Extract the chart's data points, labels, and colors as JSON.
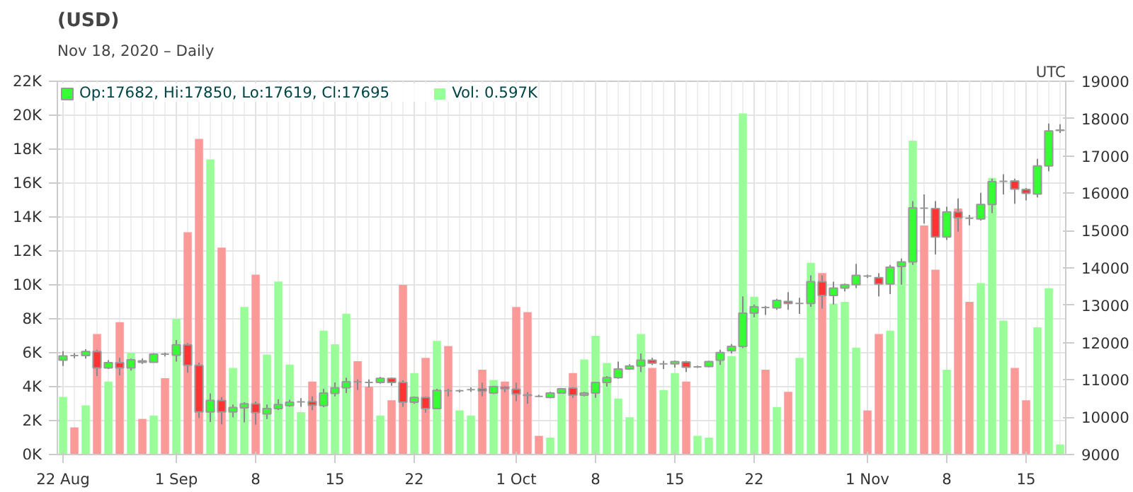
{
  "chart_data": {
    "type": "candlestick",
    "title": "(USD)",
    "subtitle": "Nov 18, 2020 – Daily",
    "annotations": [
      "UTC"
    ],
    "x": [
      "2020-08-22",
      "2020-08-23",
      "2020-08-24",
      "2020-08-25",
      "2020-08-26",
      "2020-08-27",
      "2020-08-28",
      "2020-08-29",
      "2020-08-30",
      "2020-08-31",
      "2020-09-01",
      "2020-09-02",
      "2020-09-03",
      "2020-09-04",
      "2020-09-05",
      "2020-09-06",
      "2020-09-07",
      "2020-09-08",
      "2020-09-09",
      "2020-09-10",
      "2020-09-11",
      "2020-09-12",
      "2020-09-13",
      "2020-09-14",
      "2020-09-15",
      "2020-09-16",
      "2020-09-17",
      "2020-09-18",
      "2020-09-19",
      "2020-09-20",
      "2020-09-21",
      "2020-09-22",
      "2020-09-23",
      "2020-09-24",
      "2020-09-25",
      "2020-09-26",
      "2020-09-27",
      "2020-09-28",
      "2020-09-29",
      "2020-09-30",
      "2020-10-01",
      "2020-10-02",
      "2020-10-03",
      "2020-10-04",
      "2020-10-05",
      "2020-10-06",
      "2020-10-07",
      "2020-10-08",
      "2020-10-09",
      "2020-10-10",
      "2020-10-11",
      "2020-10-12",
      "2020-10-13",
      "2020-10-14",
      "2020-10-15",
      "2020-10-16",
      "2020-10-17",
      "2020-10-18",
      "2020-10-19",
      "2020-10-20",
      "2020-10-21",
      "2020-10-22",
      "2020-10-23",
      "2020-10-24",
      "2020-10-25",
      "2020-10-26",
      "2020-10-27",
      "2020-10-28",
      "2020-10-29",
      "2020-10-30",
      "2020-10-31",
      "2020-11-01",
      "2020-11-02",
      "2020-11-03",
      "2020-11-04",
      "2020-11-05",
      "2020-11-06",
      "2020-11-07",
      "2020-11-08",
      "2020-11-09",
      "2020-11-10",
      "2020-11-11",
      "2020-11-12",
      "2020-11-13",
      "2020-11-14",
      "2020-11-15",
      "2020-11-16",
      "2020-11-17",
      "2020-11-18"
    ],
    "series": [
      {
        "type": "bar",
        "name": "Vol: 0.597K",
        "values": [
          3.4,
          1.6,
          2.9,
          7.1,
          4.3,
          7.8,
          6.0,
          2.1,
          2.3,
          4.5,
          8.0,
          13.1,
          18.6,
          17.4,
          12.2,
          5.1,
          8.7,
          10.6,
          5.9,
          10.2,
          5.3,
          2.5,
          4.3,
          7.3,
          6.5,
          8.3,
          5.5,
          4.0,
          2.3,
          3.2,
          10.0,
          4.8,
          5.7,
          6.7,
          6.4,
          2.6,
          2.3,
          5.0,
          4.4,
          4.3,
          8.7,
          8.4,
          1.1,
          1.0,
          3.6,
          4.8,
          5.6,
          7.0,
          5.4,
          3.3,
          2.2,
          7.1,
          5.1,
          3.8,
          4.8,
          4.3,
          1.1,
          1.0,
          5.6,
          5.8,
          20.1,
          9.3,
          5.0,
          2.8,
          3.7,
          5.7,
          11.3,
          10.7,
          8.9,
          9.0,
          6.3,
          2.6,
          7.1,
          7.3,
          11.1,
          18.5,
          13.5,
          10.9,
          5.0,
          14.5,
          9.0,
          10.1,
          16.3,
          7.9,
          5.1,
          3.2,
          7.5,
          9.8,
          0.597
        ],
        "colors": [
          "#99ff99",
          "#ff9999",
          "#99ff99",
          "#ff9999",
          "#99ff99",
          "#ff9999",
          "#99ff99",
          "#ff9999",
          "#99ff99",
          "#ff9999",
          "#99ff99",
          "#ff9999",
          "#ff9999",
          "#99ff99",
          "#ff9999",
          "#99ff99",
          "#99ff99",
          "#ff9999",
          "#99ff99",
          "#99ff99",
          "#99ff99",
          "#99ff99",
          "#ff9999",
          "#99ff99",
          "#99ff99",
          "#99ff99",
          "#ff9999",
          "#ff9999",
          "#99ff99",
          "#ff9999",
          "#ff9999",
          "#99ff99",
          "#ff9999",
          "#99ff99",
          "#ff9999",
          "#99ff99",
          "#99ff99",
          "#ff9999",
          "#99ff99",
          "#ff9999",
          "#ff9999",
          "#ff9999",
          "#ff9999",
          "#99ff99",
          "#99ff99",
          "#ff9999",
          "#99ff99",
          "#99ff99",
          "#99ff99",
          "#99ff99",
          "#99ff99",
          "#99ff99",
          "#ff9999",
          "#99ff99",
          "#99ff99",
          "#ff9999",
          "#99ff99",
          "#99ff99",
          "#99ff99",
          "#99ff99",
          "#99ff99",
          "#99ff99",
          "#ff9999",
          "#99ff99",
          "#ff9999",
          "#99ff99",
          "#99ff99",
          "#ff9999",
          "#99ff99",
          "#99ff99",
          "#99ff99",
          "#ff9999",
          "#ff9999",
          "#99ff99",
          "#99ff99",
          "#99ff99",
          "#ff9999",
          "#ff9999",
          "#99ff99",
          "#ff9999",
          "#ff9999",
          "#99ff99",
          "#99ff99",
          "#99ff99",
          "#ff9999",
          "#ff9999",
          "#99ff99",
          "#99ff99",
          "#99ff99"
        ]
      },
      {
        "axis": "y2",
        "name": "Op:17682, Hi:17850, Lo:17619, Cl:17695",
        "ohlc": [
          [
            11530,
            11770,
            11370,
            11640
          ],
          [
            11650,
            11720,
            11580,
            11650
          ],
          [
            11650,
            11820,
            11570,
            11760
          ],
          [
            11760,
            11810,
            11100,
            11320
          ],
          [
            11320,
            11530,
            11290,
            11460
          ],
          [
            11460,
            11590,
            11120,
            11320
          ],
          [
            11320,
            11570,
            11250,
            11540
          ],
          [
            11510,
            11570,
            11430,
            11470
          ],
          [
            11470,
            11720,
            11460,
            11690
          ],
          [
            11690,
            11730,
            11630,
            11690
          ],
          [
            11660,
            12070,
            11490,
            11940
          ],
          [
            11940,
            11990,
            11190,
            11390
          ],
          [
            11390,
            11460,
            9980,
            10140
          ],
          [
            10140,
            10640,
            9870,
            10450
          ],
          [
            10450,
            10540,
            9810,
            10140
          ],
          [
            10140,
            10340,
            10000,
            10260
          ],
          [
            10250,
            10400,
            9860,
            10360
          ],
          [
            10360,
            10420,
            9800,
            10120
          ],
          [
            10090,
            10340,
            9950,
            10230
          ],
          [
            10230,
            10480,
            10190,
            10340
          ],
          [
            10310,
            10470,
            10280,
            10400
          ],
          [
            10410,
            10510,
            10280,
            10410
          ],
          [
            10420,
            10560,
            10190,
            10320
          ],
          [
            10310,
            10760,
            10270,
            10650
          ],
          [
            10640,
            10930,
            10560,
            10790
          ],
          [
            10790,
            11060,
            10650,
            10950
          ],
          [
            10950,
            11010,
            10730,
            10950
          ],
          [
            10930,
            11010,
            10800,
            10930
          ],
          [
            10930,
            11080,
            10900,
            11040
          ],
          [
            11040,
            11060,
            10840,
            10930
          ],
          [
            10930,
            10990,
            10280,
            10400
          ],
          [
            10400,
            10560,
            10360,
            10530
          ],
          [
            10530,
            10560,
            10120,
            10230
          ],
          [
            10230,
            10760,
            10210,
            10720
          ],
          [
            10710,
            10760,
            10560,
            10710
          ],
          [
            10710,
            10740,
            10660,
            10710
          ],
          [
            10740,
            10800,
            10680,
            10740
          ],
          [
            10760,
            10920,
            10560,
            10700
          ],
          [
            10650,
            10840,
            10620,
            10820
          ],
          [
            10810,
            10840,
            10670,
            10760
          ],
          [
            10750,
            10920,
            10430,
            10620
          ],
          [
            10600,
            10670,
            10360,
            10580
          ],
          [
            10560,
            10600,
            10540,
            10560
          ],
          [
            10530,
            10680,
            10510,
            10650
          ],
          [
            10650,
            10780,
            10630,
            10760
          ],
          [
            10780,
            10810,
            10520,
            10590
          ],
          [
            10590,
            10680,
            10560,
            10650
          ],
          [
            10650,
            10950,
            10520,
            10930
          ],
          [
            10930,
            11100,
            10820,
            11060
          ],
          [
            11060,
            11490,
            11030,
            11290
          ],
          [
            11290,
            11420,
            11270,
            11370
          ],
          [
            11370,
            11710,
            11210,
            11530
          ],
          [
            11530,
            11590,
            11400,
            11450
          ],
          [
            11430,
            11510,
            11290,
            11430
          ],
          [
            11430,
            11520,
            11330,
            11490
          ],
          [
            11480,
            11510,
            11210,
            11340
          ],
          [
            11350,
            11380,
            11320,
            11350
          ],
          [
            11360,
            11510,
            11340,
            11490
          ],
          [
            11530,
            11810,
            11400,
            11730
          ],
          [
            11780,
            11960,
            11710,
            11900
          ],
          [
            11900,
            13240,
            11850,
            12790
          ],
          [
            12790,
            13020,
            12680,
            12960
          ],
          [
            12940,
            12980,
            12740,
            12940
          ],
          [
            12930,
            13170,
            12880,
            13130
          ],
          [
            13100,
            13350,
            12880,
            13050
          ],
          [
            13050,
            13200,
            12770,
            13050
          ],
          [
            13050,
            13800,
            12960,
            13630
          ],
          [
            13630,
            13800,
            12910,
            13260
          ],
          [
            13260,
            13630,
            13020,
            13460
          ],
          [
            13460,
            13580,
            13370,
            13550
          ],
          [
            13550,
            14110,
            13460,
            13800
          ],
          [
            13780,
            13820,
            13730,
            13780
          ],
          [
            13740,
            13860,
            13240,
            13570
          ],
          [
            13570,
            14080,
            13300,
            14020
          ],
          [
            14040,
            14250,
            13550,
            14160
          ],
          [
            14160,
            15790,
            14080,
            15610
          ],
          [
            15600,
            15970,
            15190,
            15600
          ],
          [
            15590,
            15790,
            14360,
            14830
          ],
          [
            14830,
            15640,
            14750,
            15500
          ],
          [
            15500,
            15860,
            14970,
            15340
          ],
          [
            15330,
            15420,
            15140,
            15330
          ],
          [
            15310,
            16010,
            15270,
            15700
          ],
          [
            15700,
            16390,
            15470,
            16310
          ],
          [
            16320,
            16510,
            15970,
            16320
          ],
          [
            16330,
            16390,
            15720,
            16110
          ],
          [
            16100,
            16140,
            15810,
            16000
          ],
          [
            15980,
            16920,
            15890,
            16730
          ],
          [
            16730,
            17870,
            16590,
            17670
          ],
          [
            17682,
            17850,
            17619,
            17695
          ]
        ],
        "colors": [
          "#33ff33",
          "#999999",
          "#33ff33",
          "#ff3333",
          "#33ff33",
          "#ff3333",
          "#33ff33",
          "#ff3333",
          "#33ff33",
          "#999999",
          "#33ff33",
          "#ff3333",
          "#ff3333",
          "#33ff33",
          "#ff3333",
          "#33ff33",
          "#33ff33",
          "#ff3333",
          "#33ff33",
          "#33ff33",
          "#33ff33",
          "#999999",
          "#ff3333",
          "#33ff33",
          "#33ff33",
          "#33ff33",
          "#999999",
          "#999999",
          "#33ff33",
          "#ff3333",
          "#ff3333",
          "#33ff33",
          "#ff3333",
          "#33ff33",
          "#999999",
          "#999999",
          "#999999",
          "#ff3333",
          "#33ff33",
          "#ff3333",
          "#ff3333",
          "#ff3333",
          "#999999",
          "#33ff33",
          "#33ff33",
          "#ff3333",
          "#33ff33",
          "#33ff33",
          "#33ff33",
          "#33ff33",
          "#33ff33",
          "#33ff33",
          "#ff3333",
          "#999999",
          "#33ff33",
          "#ff3333",
          "#999999",
          "#33ff33",
          "#33ff33",
          "#33ff33",
          "#33ff33",
          "#33ff33",
          "#999999",
          "#33ff33",
          "#ff3333",
          "#999999",
          "#33ff33",
          "#ff3333",
          "#33ff33",
          "#33ff33",
          "#33ff33",
          "#999999",
          "#ff3333",
          "#33ff33",
          "#33ff33",
          "#33ff33",
          "#999999",
          "#ff3333",
          "#33ff33",
          "#ff3333",
          "#999999",
          "#33ff33",
          "#33ff33",
          "#999999",
          "#ff3333",
          "#ff3333",
          "#33ff33",
          "#33ff33",
          "#999999"
        ]
      }
    ],
    "xlim": [
      "2020-08-21T12:00",
      "2020-11-18T12:00"
    ],
    "xticks": [
      {
        "value": "2020-08-22",
        "label": "22 Aug"
      },
      {
        "value": "2020-09-01",
        "label": "1 Sep"
      },
      {
        "value": "2020-09-08",
        "label": "8"
      },
      {
        "value": "2020-09-15",
        "label": "15"
      },
      {
        "value": "2020-09-22",
        "label": "22"
      },
      {
        "value": "2020-10-01",
        "label": "1 Oct"
      },
      {
        "value": "2020-10-08",
        "label": "8"
      },
      {
        "value": "2020-10-15",
        "label": "15"
      },
      {
        "value": "2020-10-22",
        "label": "22"
      },
      {
        "value": "2020-11-01",
        "label": "1 Nov"
      },
      {
        "value": "2020-11-08",
        "label": "8"
      },
      {
        "value": "2020-11-15",
        "label": "15"
      }
    ],
    "ylim": [
      0,
      22
    ],
    "yticks": [
      {
        "value": 0,
        "label": "0K"
      },
      {
        "value": 2,
        "label": "2K"
      },
      {
        "value": 4,
        "label": "4K"
      },
      {
        "value": 6,
        "label": "6K"
      },
      {
        "value": 8,
        "label": "8K"
      },
      {
        "value": 10,
        "label": "10K"
      },
      {
        "value": 12,
        "label": "12K"
      },
      {
        "value": 14,
        "label": "14K"
      },
      {
        "value": 16,
        "label": "16K"
      },
      {
        "value": 18,
        "label": "18K"
      },
      {
        "value": 20,
        "label": "20K"
      },
      {
        "value": 22,
        "label": "22K"
      }
    ],
    "y2lim": [
      9000,
      19000
    ],
    "y2ticks": [
      9000,
      10000,
      11000,
      12000,
      13000,
      14000,
      15000,
      16000,
      17000,
      18000,
      19000
    ],
    "grid": true,
    "legend": "top left"
  }
}
